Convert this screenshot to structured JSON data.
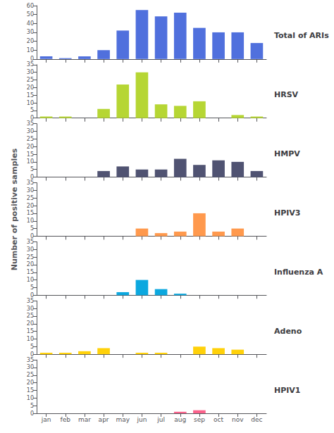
{
  "chart_data": [
    {
      "type": "bar",
      "title": "Total of ARIs",
      "categories": [
        "jan",
        "feb",
        "mar",
        "apr",
        "may",
        "jun",
        "jul",
        "aug",
        "sep",
        "oct",
        "nov",
        "dec"
      ],
      "values": [
        3,
        1,
        3,
        10,
        32,
        55,
        48,
        52,
        35,
        30,
        30,
        18
      ],
      "ylim": [
        0,
        60
      ],
      "yticks": [
        0,
        10,
        20,
        30,
        40,
        50,
        60
      ],
      "grid": false,
      "tick_labels": "y"
    },
    {
      "type": "bar",
      "title": "HRSV",
      "categories": [
        "jan",
        "feb",
        "mar",
        "apr",
        "may",
        "jun",
        "jul",
        "aug",
        "sep",
        "oct",
        "nov",
        "dec"
      ],
      "values": [
        1,
        1,
        0,
        6,
        22,
        30,
        9,
        8,
        11,
        0,
        2,
        1
      ],
      "ylim": [
        0,
        35
      ],
      "yticks": [
        0,
        5,
        10,
        15,
        20,
        25,
        30,
        35
      ],
      "grid": false,
      "tick_labels": "y"
    },
    {
      "type": "bar",
      "title": "HMPV",
      "categories": [
        "jan",
        "feb",
        "mar",
        "apr",
        "may",
        "jun",
        "jul",
        "aug",
        "sep",
        "oct",
        "nov",
        "dec"
      ],
      "values": [
        0,
        0,
        0,
        4,
        7,
        5,
        5,
        12,
        8,
        11,
        10,
        4
      ],
      "ylim": [
        0,
        35
      ],
      "yticks": [
        0,
        5,
        10,
        15,
        20,
        25,
        30,
        35
      ],
      "grid": false,
      "tick_labels": "y"
    },
    {
      "type": "bar",
      "title": "HPIV3",
      "ylabel": "Number of positive samples",
      "categories": [
        "jan",
        "feb",
        "mar",
        "apr",
        "may",
        "jun",
        "jul",
        "aug",
        "sep",
        "oct",
        "nov",
        "dec"
      ],
      "values": [
        0,
        0,
        0,
        0,
        0,
        5,
        2,
        3,
        15,
        3,
        5,
        0
      ],
      "ylim": [
        0,
        35
      ],
      "yticks": [
        0,
        5,
        10,
        15,
        20,
        25,
        30,
        35
      ],
      "grid": false,
      "tick_labels": "y"
    },
    {
      "type": "bar",
      "title": "Influenza A",
      "categories": [
        "jan",
        "feb",
        "mar",
        "apr",
        "may",
        "jun",
        "jul",
        "aug",
        "sep",
        "oct",
        "nov",
        "dec"
      ],
      "values": [
        0,
        0,
        0,
        0,
        2,
        10,
        4,
        1,
        0,
        0,
        0,
        0
      ],
      "ylim": [
        0,
        35
      ],
      "yticks": [
        0,
        5,
        10,
        15,
        20,
        25,
        30,
        35
      ],
      "grid": false,
      "tick_labels": "y"
    },
    {
      "type": "bar",
      "title": "Adeno",
      "categories": [
        "jan",
        "feb",
        "mar",
        "apr",
        "may",
        "jun",
        "jul",
        "aug",
        "sep",
        "oct",
        "nov",
        "dec"
      ],
      "values": [
        1,
        1,
        2,
        4,
        0,
        1,
        1,
        0,
        5,
        4,
        3,
        0
      ],
      "ylim": [
        0,
        35
      ],
      "yticks": [
        0,
        5,
        10,
        15,
        20,
        25,
        30,
        35
      ],
      "grid": false,
      "tick_labels": "y"
    },
    {
      "type": "bar",
      "title": "HPIV1",
      "categories": [
        "jan",
        "feb",
        "mar",
        "apr",
        "may",
        "jun",
        "jul",
        "aug",
        "sep",
        "oct",
        "nov",
        "dec"
      ],
      "values": [
        0,
        0,
        0,
        0,
        0,
        0,
        0,
        1,
        2,
        0,
        0,
        0
      ],
      "ylim": [
        0,
        35
      ],
      "yticks": [
        0,
        5,
        10,
        15,
        20,
        25,
        30,
        35
      ],
      "grid": false
    }
  ]
}
